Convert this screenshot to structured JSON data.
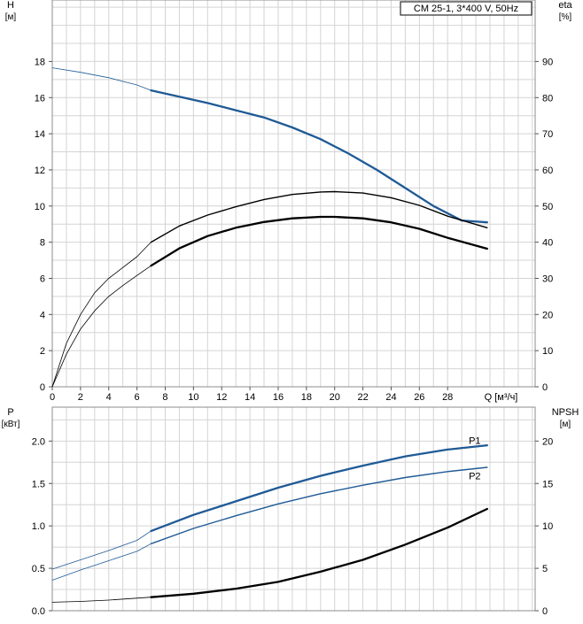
{
  "colors": {
    "blue": "#1f5a96",
    "black": "#000000",
    "grid": "#d4d4d4",
    "frame": "#8c8c8c"
  },
  "chart_data": [
    {
      "type": "line",
      "title": "CM 25-1, 3*400 V, 50Hz",
      "ylabel_left": {
        "name": "H",
        "unit": "[м]"
      },
      "ylabel_right": {
        "name": "eta",
        "unit": "[%]"
      },
      "xlabel": "Q [м³/ч]",
      "xlim": [
        0,
        34.2
      ],
      "ylim_left": [
        0,
        21.4
      ],
      "ylim_right": [
        0,
        107
      ],
      "x_ticks": [
        0,
        2,
        4,
        6,
        8,
        10,
        12,
        14,
        16,
        18,
        20,
        22,
        24,
        26,
        28
      ],
      "x_tick_labels": [
        "0",
        "2",
        "4",
        "6",
        "8",
        "10",
        "12",
        "14",
        "16",
        "18",
        "20",
        "22",
        "24",
        "26",
        "28"
      ],
      "y_left_ticks": [
        0,
        2,
        4,
        6,
        8,
        10,
        12,
        14,
        16,
        18
      ],
      "y_left_tick_labels": [
        "0",
        "2",
        "4",
        "6",
        "8",
        "10",
        "12",
        "14",
        "16",
        "18"
      ],
      "y_right_ticks": [
        0,
        10,
        20,
        30,
        40,
        50,
        60,
        70,
        80,
        90
      ],
      "y_right_tick_labels": [
        "0",
        "10",
        "20",
        "30",
        "40",
        "50",
        "60",
        "70",
        "80",
        "90"
      ],
      "grid": true,
      "series": [
        {
          "axis": "left",
          "color": "blue",
          "x": [
            0,
            2,
            4,
            6,
            7
          ],
          "y": [
            17.65,
            17.4,
            17.1,
            16.7,
            16.4
          ],
          "style": "thin"
        },
        {
          "axis": "left",
          "color": "blue",
          "x": [
            7,
            9,
            11,
            13,
            15,
            17,
            19,
            21,
            23,
            25,
            27,
            29,
            30.8
          ],
          "y": [
            16.4,
            16.05,
            15.7,
            15.3,
            14.9,
            14.35,
            13.7,
            12.9,
            12.0,
            11.0,
            10.0,
            9.2,
            9.1
          ],
          "style": "thick"
        },
        {
          "axis": "right",
          "color": "black",
          "x": [
            0,
            1,
            2,
            3,
            4,
            5,
            6,
            7
          ],
          "y": [
            0,
            12,
            20,
            26,
            30,
            33,
            36,
            40
          ],
          "style": "thin"
        },
        {
          "axis": "right",
          "color": "black",
          "x": [
            7,
            9,
            11,
            13,
            15,
            17,
            19,
            20,
            22,
            24,
            26,
            28,
            30.8
          ],
          "y": [
            40,
            44.5,
            47.5,
            49.8,
            51.8,
            53.2,
            53.9,
            54,
            53.6,
            52.3,
            50.2,
            47.2,
            44.0
          ],
          "style": "medium"
        },
        {
          "axis": "right",
          "color": "black",
          "x": [
            0,
            1,
            2,
            3,
            4,
            5,
            6,
            7
          ],
          "y": [
            0,
            9,
            16,
            21,
            25,
            28,
            30.8,
            33.5
          ],
          "style": "thin"
        },
        {
          "axis": "right",
          "color": "black",
          "x": [
            7,
            9,
            11,
            13,
            15,
            17,
            19,
            20,
            22,
            24,
            26,
            28,
            30.8
          ],
          "y": [
            33.5,
            38.3,
            41.7,
            44.0,
            45.6,
            46.6,
            47.0,
            47.0,
            46.6,
            45.5,
            43.7,
            41.2,
            38.2
          ],
          "style": "thick"
        }
      ]
    },
    {
      "type": "line",
      "ylabel_left": {
        "name": "P",
        "unit": "[кВт]"
      },
      "ylabel_right": {
        "name": "NPSH",
        "unit": "[м]"
      },
      "xlim": [
        0,
        34.2
      ],
      "ylim_left": [
        0,
        2.4
      ],
      "ylim_right": [
        0,
        24
      ],
      "y_left_ticks": [
        0,
        0.5,
        1.0,
        1.5,
        2.0
      ],
      "y_left_tick_labels": [
        "0.0",
        "0.5",
        "1.0",
        "1.5",
        "2.0"
      ],
      "y_right_ticks": [
        0,
        5,
        10,
        15,
        20
      ],
      "y_right_tick_labels": [
        "0",
        "5",
        "10",
        "15",
        "20"
      ],
      "grid": true,
      "series": [
        {
          "name": "P1",
          "axis": "left",
          "color": "blue",
          "x": [
            0,
            2,
            4,
            6,
            7
          ],
          "y": [
            0.49,
            0.6,
            0.71,
            0.83,
            0.94
          ],
          "style": "thin"
        },
        {
          "name": "P1",
          "axis": "left",
          "color": "blue",
          "x": [
            7,
            10,
            13,
            16,
            19,
            22,
            25,
            28,
            30.8
          ],
          "y": [
            0.94,
            1.13,
            1.29,
            1.45,
            1.59,
            1.71,
            1.82,
            1.9,
            1.95
          ],
          "style": "thick"
        },
        {
          "name": "P2",
          "axis": "left",
          "color": "blue",
          "x": [
            0,
            2,
            4,
            6,
            7
          ],
          "y": [
            0.36,
            0.48,
            0.59,
            0.7,
            0.79
          ],
          "style": "thin"
        },
        {
          "name": "P2",
          "axis": "left",
          "color": "blue",
          "x": [
            7,
            10,
            13,
            16,
            19,
            22,
            25,
            28,
            30.8
          ],
          "y": [
            0.79,
            0.97,
            1.12,
            1.26,
            1.38,
            1.48,
            1.57,
            1.64,
            1.69
          ],
          "style": "medium"
        },
        {
          "axis": "right",
          "color": "black",
          "x": [
            0,
            2,
            4,
            7
          ],
          "y": [
            1.0,
            1.1,
            1.25,
            1.6
          ],
          "style": "thin"
        },
        {
          "axis": "right",
          "color": "black",
          "x": [
            7,
            10,
            13,
            16,
            19,
            22,
            25,
            28,
            30.8
          ],
          "y": [
            1.6,
            2.0,
            2.6,
            3.4,
            4.6,
            6.0,
            7.8,
            9.8,
            12.0
          ],
          "style": "thick"
        }
      ],
      "labels": [
        {
          "text": "P1",
          "x": 29.5,
          "y": 2.01
        },
        {
          "text": "P2",
          "x": 29.5,
          "y": 1.59
        }
      ]
    }
  ]
}
